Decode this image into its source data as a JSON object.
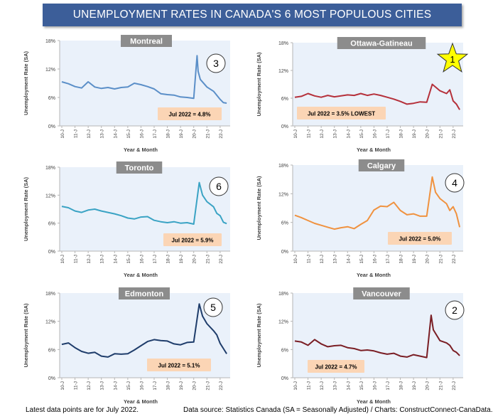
{
  "page": {
    "title": "UNEMPLOYMENT RATES IN CANADA'S 6 MOST POPULOUS CITIES",
    "footnote_left": "Latest data points are for July 2022.",
    "footnote_right": "Data source: Statistics Canada (SA = Seasonally Adjusted) / Charts: ConstructConnect-CanaData."
  },
  "chart_data": [
    {
      "type": "line",
      "title": "Montreal",
      "xlabel": "Year & Month",
      "ylabel": "Unemployment Rate (SA)",
      "ylim": [
        0,
        18
      ],
      "yticks": [
        "0%",
        "6%",
        "12%",
        "18%"
      ],
      "xticks": [
        "10-J",
        "11-J",
        "12-J",
        "13-J",
        "14-J",
        "15-J",
        "16-J",
        "17-J",
        "18-J",
        "19-J",
        "20-J",
        "21-J",
        "22-J"
      ],
      "rank": "3",
      "annotation": "Jul 2022 = 4.8%",
      "color": "#5b8fc8",
      "series": [
        {
          "x": [
            "2010-01",
            "2010-07",
            "2011-01",
            "2011-07",
            "2012-01",
            "2012-07",
            "2013-01",
            "2013-07",
            "2014-01",
            "2014-07",
            "2015-01",
            "2015-07",
            "2016-01",
            "2016-07",
            "2017-01",
            "2017-07",
            "2018-01",
            "2018-07",
            "2019-01",
            "2019-07",
            "2020-01",
            "2020-04",
            "2020-05",
            "2020-07",
            "2021-01",
            "2021-07",
            "2022-01",
            "2022-04",
            "2022-07"
          ],
          "values": [
            9.3,
            8.9,
            8.3,
            8.0,
            9.3,
            8.2,
            7.9,
            8.1,
            7.8,
            8.1,
            8.2,
            9.0,
            8.7,
            8.3,
            7.8,
            6.8,
            6.6,
            6.5,
            6.1,
            6.0,
            5.8,
            14.8,
            11.5,
            9.8,
            8.2,
            7.3,
            5.6,
            4.9,
            4.8
          ]
        }
      ]
    },
    {
      "type": "line",
      "title": "Ottawa-Gatineau",
      "xlabel": "Year & Month",
      "ylabel": "Unemployment Rate (SA)",
      "ylim": [
        0,
        18
      ],
      "yticks": [
        "0%",
        "6%",
        "12%",
        "18%"
      ],
      "xticks": [
        "10-J",
        "11-J",
        "12-J",
        "13-J",
        "14-J",
        "15-J",
        "16-J",
        "17-J",
        "18-J",
        "19-J",
        "20-J",
        "21-J",
        "22-J"
      ],
      "rank": "1",
      "annotation": "Jul 2022 = 3.5% LOWEST",
      "color": "#b5303a",
      "series": [
        {
          "x": [
            "2010-01",
            "2010-07",
            "2011-01",
            "2011-07",
            "2012-01",
            "2012-07",
            "2013-01",
            "2013-07",
            "2014-01",
            "2014-07",
            "2015-01",
            "2015-07",
            "2016-01",
            "2016-07",
            "2017-01",
            "2017-07",
            "2018-01",
            "2018-07",
            "2019-01",
            "2019-07",
            "2020-01",
            "2020-06",
            "2020-09",
            "2021-01",
            "2021-07",
            "2021-10",
            "2022-01",
            "2022-04",
            "2022-07"
          ],
          "values": [
            6.2,
            6.4,
            7.0,
            6.5,
            6.2,
            6.6,
            6.3,
            6.5,
            6.7,
            6.6,
            7.0,
            6.6,
            6.9,
            6.6,
            6.2,
            5.8,
            5.3,
            4.7,
            4.9,
            5.2,
            5.1,
            9.0,
            8.4,
            7.6,
            7.0,
            7.8,
            5.4,
            4.7,
            3.5
          ]
        }
      ]
    },
    {
      "type": "line",
      "title": "Toronto",
      "xlabel": "Year & Month",
      "ylabel": "Unemployment Rate (SA)",
      "ylim": [
        0,
        18
      ],
      "yticks": [
        "0%",
        "6%",
        "12%",
        "18%"
      ],
      "xticks": [
        "10-J",
        "11-J",
        "12-J",
        "13-J",
        "14-J",
        "15-J",
        "16-J",
        "17-J",
        "18-J",
        "19-J",
        "20-J",
        "21-J",
        "22-J"
      ],
      "rank": "6",
      "annotation": "Jul 2022 = 5.9%",
      "color": "#3aa3c4",
      "series": [
        {
          "x": [
            "2010-01",
            "2010-07",
            "2011-01",
            "2011-07",
            "2012-01",
            "2012-07",
            "2013-01",
            "2013-07",
            "2014-01",
            "2014-07",
            "2015-01",
            "2015-07",
            "2016-01",
            "2016-07",
            "2017-01",
            "2017-07",
            "2018-01",
            "2018-07",
            "2019-01",
            "2019-07",
            "2020-01",
            "2020-06",
            "2020-09",
            "2021-01",
            "2021-07",
            "2021-10",
            "2022-01",
            "2022-04",
            "2022-07"
          ],
          "values": [
            9.6,
            9.3,
            8.6,
            8.3,
            8.8,
            9.0,
            8.6,
            8.3,
            8.0,
            7.6,
            7.1,
            6.9,
            7.3,
            7.4,
            6.6,
            6.3,
            6.1,
            6.3,
            6.0,
            6.1,
            5.8,
            14.7,
            12.0,
            10.6,
            9.5,
            8.1,
            7.6,
            6.2,
            5.9
          ]
        }
      ]
    },
    {
      "type": "line",
      "title": "Calgary",
      "xlabel": "Year & Month",
      "ylabel": "Unemployment Rate (SA)",
      "ylim": [
        0,
        18
      ],
      "yticks": [
        "0%",
        "6%",
        "12%",
        "18%"
      ],
      "xticks": [
        "10-J",
        "11-J",
        "12-J",
        "13-J",
        "14-J",
        "15-J",
        "16-J",
        "17-J",
        "18-J",
        "19-J",
        "20-J",
        "21-J",
        "22-J"
      ],
      "rank": "4",
      "annotation": "Jul 2022 = 5.0%",
      "color": "#f0923f",
      "series": [
        {
          "x": [
            "2010-01",
            "2010-07",
            "2011-01",
            "2011-07",
            "2012-01",
            "2012-07",
            "2013-01",
            "2013-07",
            "2014-01",
            "2014-07",
            "2015-01",
            "2015-07",
            "2016-01",
            "2016-07",
            "2017-01",
            "2017-07",
            "2018-01",
            "2018-07",
            "2019-01",
            "2019-07",
            "2020-01",
            "2020-06",
            "2020-09",
            "2021-01",
            "2021-07",
            "2021-10",
            "2022-01",
            "2022-04",
            "2022-07"
          ],
          "values": [
            7.5,
            7.0,
            6.4,
            5.8,
            5.4,
            5.0,
            4.6,
            4.9,
            5.1,
            4.7,
            5.6,
            6.4,
            8.6,
            9.4,
            9.3,
            10.2,
            8.5,
            7.6,
            7.8,
            7.3,
            7.3,
            15.5,
            12.3,
            11.0,
            9.9,
            8.5,
            9.3,
            7.8,
            5.0
          ]
        }
      ]
    },
    {
      "type": "line",
      "title": "Edmonton",
      "xlabel": "Year & Month",
      "ylabel": "Unemployment Rate (SA)",
      "ylim": [
        0,
        18
      ],
      "yticks": [
        "0%",
        "6%",
        "12%",
        "18%"
      ],
      "xticks": [
        "10-J",
        "11-J",
        "12-J",
        "13-J",
        "14-J",
        "15-J",
        "16-J",
        "17-J",
        "18-J",
        "19-J",
        "20-J",
        "21-J",
        "22-J"
      ],
      "rank": "5",
      "annotation": "Jul 2022 = 5.1%",
      "color": "#1f3d6b",
      "series": [
        {
          "x": [
            "2010-01",
            "2010-07",
            "2011-01",
            "2011-07",
            "2012-01",
            "2012-07",
            "2013-01",
            "2013-07",
            "2014-01",
            "2014-07",
            "2015-01",
            "2015-07",
            "2016-01",
            "2016-07",
            "2017-01",
            "2017-07",
            "2018-01",
            "2018-07",
            "2019-01",
            "2019-07",
            "2020-01",
            "2020-06",
            "2020-09",
            "2021-01",
            "2021-07",
            "2021-10",
            "2022-01",
            "2022-04",
            "2022-07"
          ],
          "values": [
            7.1,
            7.4,
            6.4,
            5.6,
            5.2,
            5.4,
            4.6,
            4.4,
            5.1,
            5.0,
            5.1,
            5.9,
            6.8,
            7.7,
            8.1,
            7.9,
            7.8,
            7.2,
            7.0,
            7.5,
            7.6,
            15.7,
            13.1,
            11.5,
            10.0,
            9.1,
            7.3,
            6.2,
            5.1
          ]
        }
      ]
    },
    {
      "type": "line",
      "title": "Vancouver",
      "xlabel": "Year & Month",
      "ylabel": "Unemployment Rate (SA)",
      "ylim": [
        0,
        18
      ],
      "yticks": [
        "0%",
        "6%",
        "12%",
        "18%"
      ],
      "xticks": [
        "10-J",
        "11-J",
        "12-J",
        "13-J",
        "14-J",
        "15-J",
        "16-J",
        "17-J",
        "18-J",
        "19-J",
        "20-J",
        "21-J",
        "22-J"
      ],
      "rank": "2",
      "annotation": "Jul 2022 = 4.7%",
      "color": "#7a1e24",
      "series": [
        {
          "x": [
            "2010-01",
            "2010-07",
            "2011-01",
            "2011-07",
            "2012-01",
            "2012-07",
            "2013-01",
            "2013-07",
            "2014-01",
            "2014-07",
            "2015-01",
            "2015-07",
            "2016-01",
            "2016-07",
            "2017-01",
            "2017-07",
            "2018-01",
            "2018-07",
            "2019-01",
            "2019-07",
            "2020-01",
            "2020-05",
            "2020-07",
            "2021-01",
            "2021-07",
            "2021-10",
            "2022-01",
            "2022-04",
            "2022-07"
          ],
          "values": [
            7.8,
            7.6,
            6.9,
            8.1,
            7.2,
            6.6,
            6.8,
            6.9,
            6.4,
            6.2,
            5.8,
            5.9,
            5.7,
            5.3,
            5.0,
            5.2,
            4.6,
            4.4,
            4.9,
            4.6,
            4.3,
            13.3,
            10.2,
            7.9,
            7.4,
            6.9,
            5.8,
            5.4,
            4.7
          ]
        }
      ]
    }
  ]
}
